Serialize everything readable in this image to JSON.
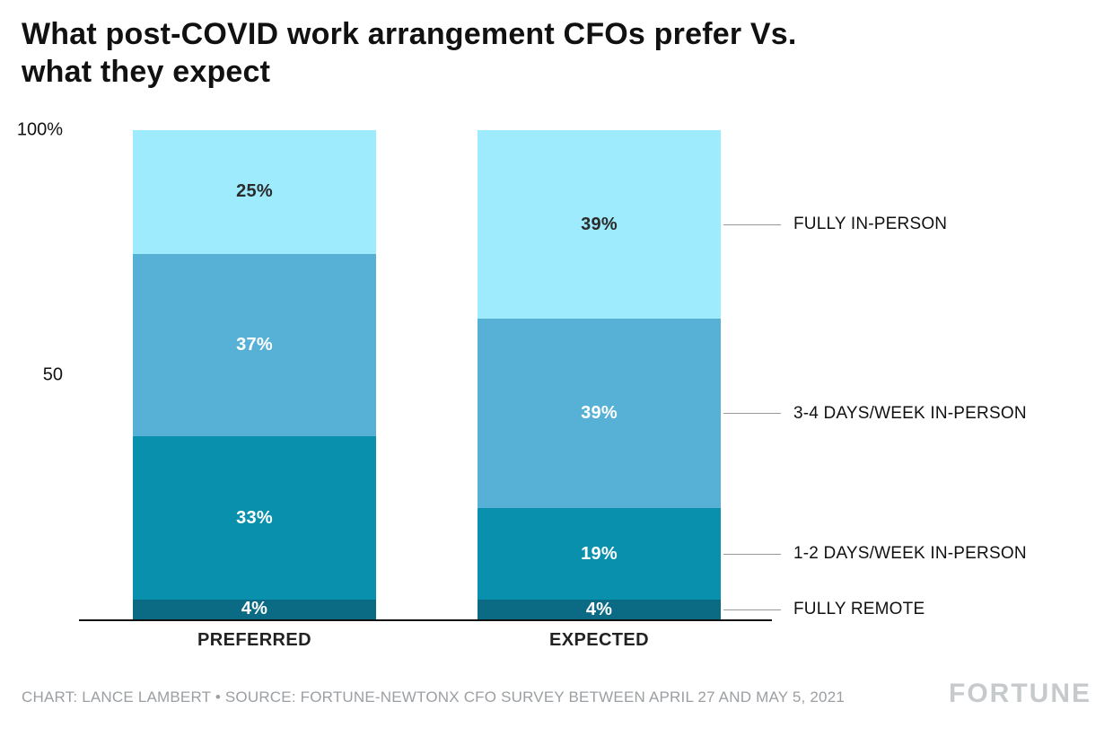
{
  "title_lines": [
    "What post-COVID work arrangement CFOs prefer Vs.",
    "what they expect"
  ],
  "y_axis": {
    "max": 100,
    "ticks": [
      {
        "label": "100%",
        "value": 100
      },
      {
        "label": "50",
        "value": 50
      }
    ]
  },
  "chart_data": {
    "type": "bar",
    "stacked": true,
    "title": "What post-COVID work arrangement CFOs prefer Vs. what they expect",
    "categories": [
      "PREFERRED",
      "EXPECTED"
    ],
    "series": [
      {
        "name": "FULLY REMOTE",
        "values": [
          4,
          4
        ],
        "color": "#0B6B85",
        "label_color": "#FFFFFF"
      },
      {
        "name": "1-2 DAYS/WEEK IN-PERSON",
        "values": [
          33,
          19
        ],
        "color": "#0990AC",
        "label_color": "#FFFFFF"
      },
      {
        "name": "3-4 DAYS/WEEK IN-PERSON",
        "values": [
          37,
          39
        ],
        "color": "#57B1D7",
        "label_color": "#FFFFFF"
      },
      {
        "name": "FULLY IN-PERSON",
        "values": [
          25,
          39
        ],
        "color": "#9DEBFC",
        "label_color": "#2B2B2B"
      }
    ],
    "value_suffix": "%",
    "ylim": [
      0,
      100
    ],
    "grid": false,
    "legend_position": "right-annotations"
  },
  "footer": {
    "credit": "CHART: LANCE LAMBERT • SOURCE: FORTUNE-NEWTONX CFO SURVEY BETWEEN APRIL 27 AND MAY 5, 2021",
    "logo": "FORTUNE"
  }
}
